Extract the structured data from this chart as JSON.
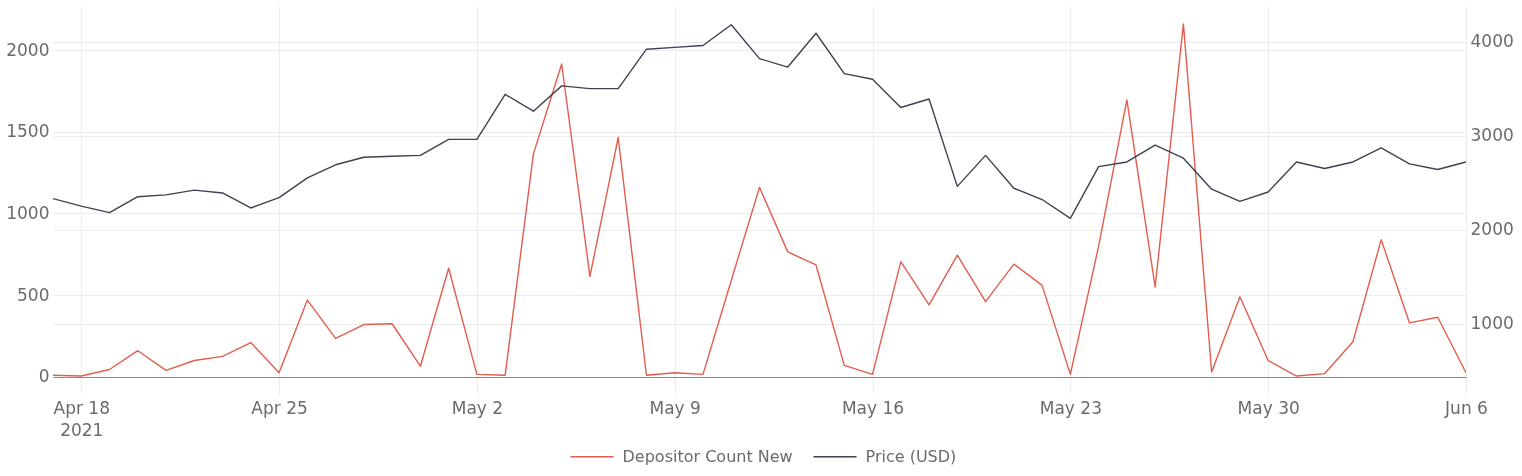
{
  "chart_data": {
    "type": "line",
    "x": [
      "2021-04-17",
      "2021-04-18",
      "2021-04-19",
      "2021-04-20",
      "2021-04-21",
      "2021-04-22",
      "2021-04-23",
      "2021-04-24",
      "2021-04-25",
      "2021-04-26",
      "2021-04-27",
      "2021-04-28",
      "2021-04-29",
      "2021-04-30",
      "2021-05-01",
      "2021-05-02",
      "2021-05-03",
      "2021-05-04",
      "2021-05-05",
      "2021-05-06",
      "2021-05-07",
      "2021-05-08",
      "2021-05-09",
      "2021-05-10",
      "2021-05-11",
      "2021-05-12",
      "2021-05-13",
      "2021-05-14",
      "2021-05-15",
      "2021-05-16",
      "2021-05-17",
      "2021-05-18",
      "2021-05-19",
      "2021-05-20",
      "2021-05-21",
      "2021-05-22",
      "2021-05-23",
      "2021-05-24",
      "2021-05-25",
      "2021-05-26",
      "2021-05-27",
      "2021-05-28",
      "2021-05-29",
      "2021-05-30",
      "2021-05-31",
      "2021-06-01",
      "2021-06-02",
      "2021-06-03",
      "2021-06-04",
      "2021-06-05",
      "2021-06-06"
    ],
    "series": [
      {
        "name": "Depositor Count New",
        "color": "#e35d4d",
        "values": [
          10,
          5,
          45,
          160,
          40,
          100,
          125,
          210,
          25,
          470,
          235,
          320,
          325,
          65,
          665,
          15,
          10,
          1365,
          1915,
          615,
          1465,
          10,
          25,
          15,
          590,
          1160,
          765,
          685,
          70,
          15,
          705,
          440,
          745,
          460,
          690,
          560,
          15,
          800,
          1695,
          550,
          2160,
          30,
          490,
          100,
          5,
          20,
          215,
          840,
          330,
          365,
          25
        ]
      },
      {
        "name": "Price (USD)",
        "color": "#3d4250",
        "axis": "y2",
        "values": [
          2330,
          2250,
          2180,
          2350,
          2370,
          2420,
          2390,
          2230,
          2340,
          2550,
          2690,
          2770,
          2780,
          2790,
          2960,
          2960,
          3440,
          3260,
          3530,
          3500,
          3500,
          3920,
          3940,
          3960,
          4180,
          3820,
          3730,
          4090,
          3660,
          3600,
          3300,
          3390,
          2460,
          2790,
          2440,
          2320,
          2120,
          2670,
          2720,
          2900,
          2760,
          2430,
          2300,
          2400,
          2720,
          2650,
          2720,
          2870,
          2700,
          2640,
          2720
        ]
      }
    ],
    "xlim": [
      "2021-04-17",
      "2021-06-06"
    ],
    "xticks": [
      {
        "value": "2021-04-18",
        "label": "Apr 18\n2021"
      },
      {
        "value": "2021-04-25",
        "label": "Apr 25"
      },
      {
        "value": "2021-05-02",
        "label": "May 2"
      },
      {
        "value": "2021-05-09",
        "label": "May 9"
      },
      {
        "value": "2021-05-16",
        "label": "May 16"
      },
      {
        "value": "2021-05-23",
        "label": "May 23"
      },
      {
        "value": "2021-05-30",
        "label": "May 30"
      },
      {
        "value": "2021-06-06",
        "label": "Jun 6"
      }
    ],
    "ylim": [
      -105,
      2270
    ],
    "yticks": [
      0,
      500,
      1000,
      1500,
      2000
    ],
    "y2lim": [
      250,
      4380
    ],
    "y2ticks": [
      1000,
      2000,
      3000,
      4000
    ],
    "grid": true,
    "legend": "bottom"
  }
}
